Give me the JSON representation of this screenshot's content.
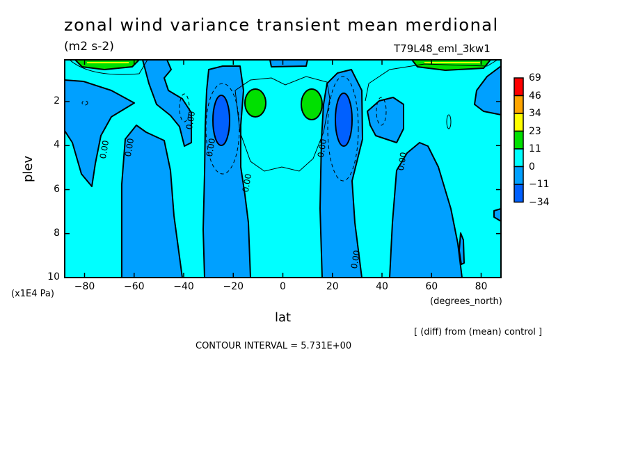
{
  "chart_data": {
    "type": "contour",
    "title": "zonal wind variance transient mean merdional",
    "units": "(m2 s-2)",
    "run_label": "T79L48_eml_3kw1",
    "xlabel": "lat",
    "xunits": "(degrees_north)",
    "ylabel": "plev",
    "yunits": "(x1E4 Pa)",
    "xlim": [
      -88,
      88
    ],
    "ylim": [
      10,
      0.1
    ],
    "x_ticks": [
      -80,
      -60,
      -40,
      -20,
      0,
      20,
      40,
      60,
      80
    ],
    "y_ticks": [
      2,
      4,
      6,
      8,
      10
    ],
    "contour_line_label": "0.00",
    "contour_interval_text": "CONTOUR INTERVAL = 5.731E+00",
    "footer_note": "[ (diff) from (mean) control ]",
    "colorbar": {
      "levels": [
        "69",
        "46",
        "34",
        "23",
        "11",
        "0",
        "-11",
        "-34"
      ],
      "colors": [
        "#ff0000",
        "#ffa500",
        "#ffff00",
        "#00e000",
        "#00ffff",
        "#00a0ff",
        "#0060ff"
      ]
    }
  }
}
